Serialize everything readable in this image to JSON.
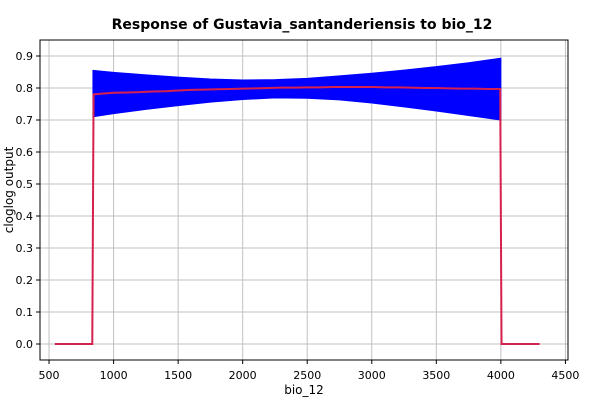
{
  "chart_data": {
    "type": "line",
    "title": "Response of Gustavia_santanderiensis to bio_12",
    "xlabel": "bio_12",
    "ylabel": "cloglog output",
    "xlim": [
      430,
      4520
    ],
    "ylim": [
      -0.05,
      0.95
    ],
    "xticks": [
      500,
      1000,
      1500,
      2000,
      2500,
      3000,
      3500,
      4000,
      4500
    ],
    "yticks": [
      0.0,
      0.1,
      0.2,
      0.3,
      0.4,
      0.5,
      0.6,
      0.7,
      0.8,
      0.9
    ],
    "grid": true,
    "colors": {
      "band": "#0000ff",
      "line": "#d6204e",
      "grid": "#c0c0c0"
    },
    "series": [
      {
        "kind": "band",
        "x": [
          840,
          1000,
          1250,
          1500,
          1750,
          2000,
          2250,
          2500,
          2750,
          3000,
          3250,
          3500,
          3750,
          4000
        ],
        "upper": [
          0.855,
          0.849,
          0.841,
          0.834,
          0.828,
          0.825,
          0.826,
          0.83,
          0.838,
          0.846,
          0.856,
          0.867,
          0.879,
          0.893
        ],
        "lower": [
          0.71,
          0.72,
          0.733,
          0.745,
          0.756,
          0.764,
          0.769,
          0.768,
          0.763,
          0.753,
          0.741,
          0.728,
          0.714,
          0.7
        ]
      },
      {
        "kind": "line",
        "x": [
          545,
          835,
          845,
          900,
          1000,
          1100,
          1200,
          1300,
          1400,
          1500,
          1600,
          1700,
          1800,
          1900,
          2000,
          2100,
          2200,
          2300,
          2400,
          2500,
          2600,
          2700,
          2800,
          2900,
          3000,
          3100,
          3200,
          3300,
          3400,
          3500,
          3600,
          3700,
          3800,
          3900,
          3995,
          4005,
          4300
        ],
        "y": [
          0.0,
          0.0,
          0.78,
          0.782,
          0.785,
          0.786,
          0.787,
          0.789,
          0.79,
          0.792,
          0.794,
          0.795,
          0.796,
          0.797,
          0.798,
          0.799,
          0.8,
          0.801,
          0.801,
          0.802,
          0.802,
          0.803,
          0.803,
          0.803,
          0.803,
          0.802,
          0.802,
          0.801,
          0.8,
          0.8,
          0.799,
          0.798,
          0.798,
          0.797,
          0.797,
          0.0,
          0.0
        ]
      }
    ]
  }
}
